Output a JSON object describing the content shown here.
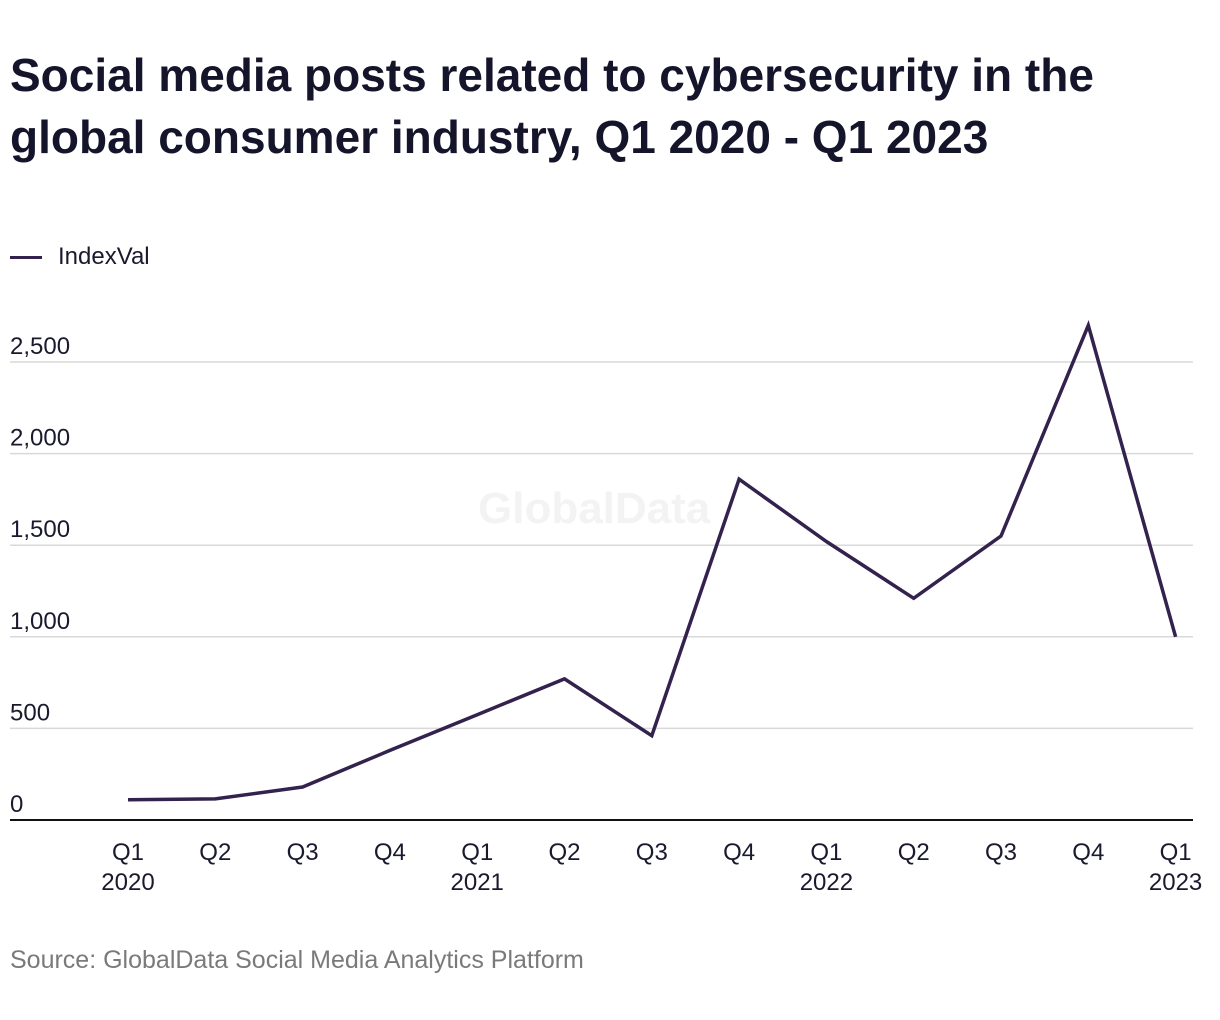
{
  "colors": {
    "line": "#33224d",
    "grid": "#d9d9d9",
    "axis": "#111111"
  },
  "watermark": "GlobalData",
  "source": "Source: GlobalData Social Media Analytics Platform",
  "chart_data": {
    "type": "line",
    "title": "Social media posts related to cybersecurity in the global consumer industry, Q1 2020 - Q1 2023",
    "xlabel": "",
    "ylabel": "",
    "ylim": [
      0,
      2500
    ],
    "yticks": [
      0,
      500,
      1000,
      1500,
      2000,
      2500
    ],
    "ytick_labels": [
      "0",
      "500",
      "1,000",
      "1,500",
      "2,000",
      "2,500"
    ],
    "grid": true,
    "legend_position": "top-left",
    "categories": [
      [
        "Q1",
        "2020"
      ],
      [
        "Q2",
        ""
      ],
      [
        "Q3",
        ""
      ],
      [
        "Q4",
        ""
      ],
      [
        "Q1",
        "2021"
      ],
      [
        "Q2",
        ""
      ],
      [
        "Q3",
        ""
      ],
      [
        "Q4",
        ""
      ],
      [
        "Q1",
        "2022"
      ],
      [
        "Q2",
        ""
      ],
      [
        "Q3",
        ""
      ],
      [
        "Q4",
        ""
      ],
      [
        "Q1",
        "2023"
      ]
    ],
    "series": [
      {
        "name": "IndexVal",
        "values": [
          110,
          115,
          180,
          380,
          575,
          770,
          460,
          1860,
          1520,
          1210,
          1550,
          2700,
          1000
        ]
      }
    ]
  }
}
